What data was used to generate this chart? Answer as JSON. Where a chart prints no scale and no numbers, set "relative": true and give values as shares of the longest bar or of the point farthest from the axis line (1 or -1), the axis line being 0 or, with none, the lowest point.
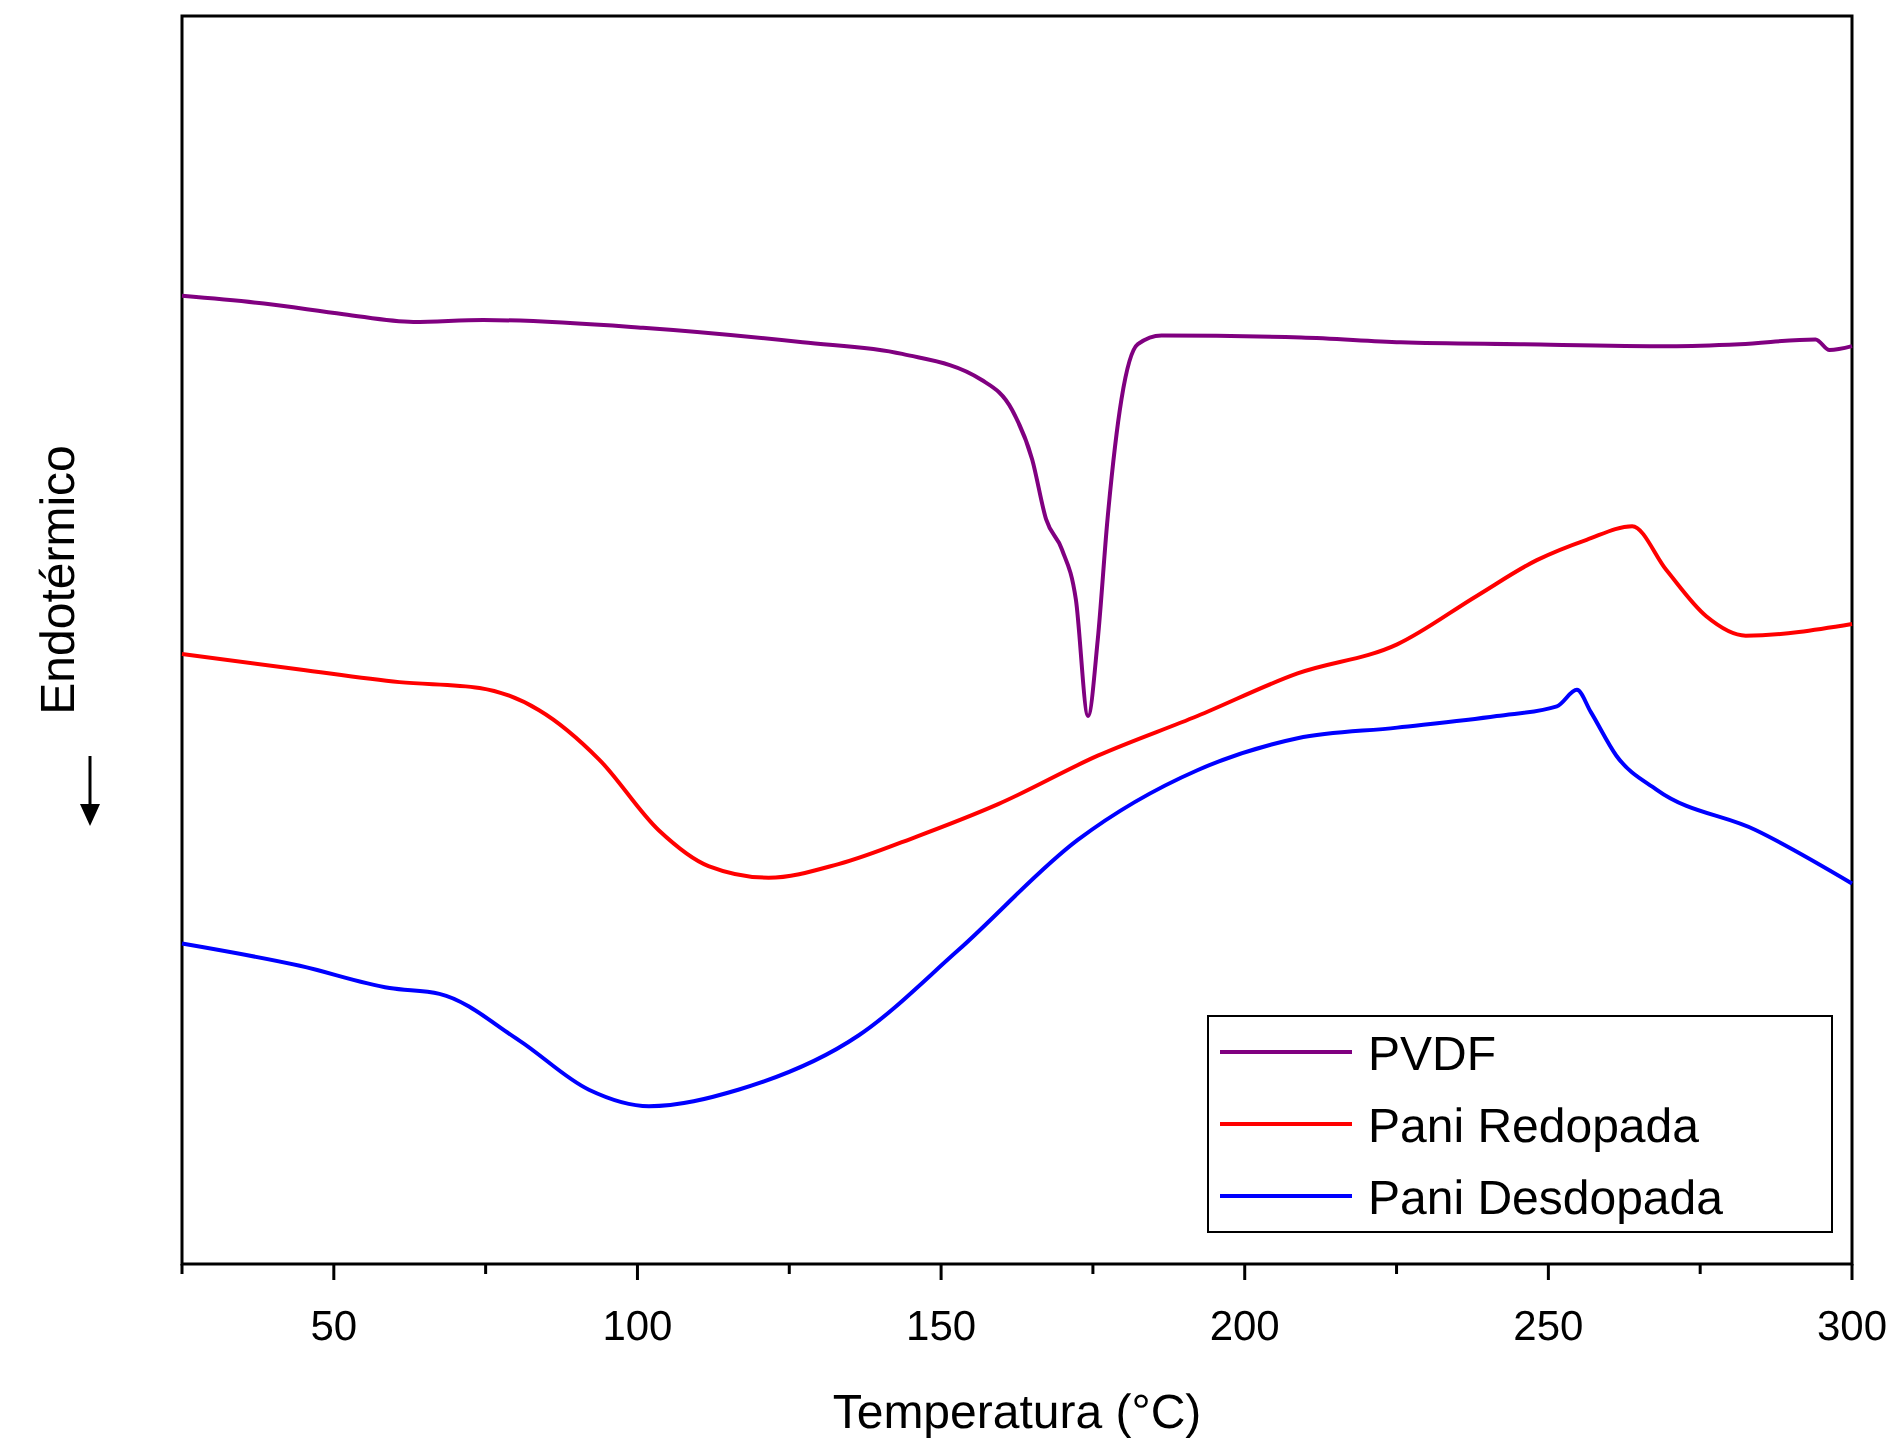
{
  "chart_data": {
    "type": "line",
    "relative": true,
    "xlabel": "Temperatura (°C)",
    "ylabel": "Endotérmico",
    "xlim": [
      25,
      300
    ],
    "xticks": [
      50,
      100,
      150,
      200,
      250,
      300
    ],
    "legend": "bottom right",
    "marker": "none",
    "line_style": "solid",
    "series": [
      {
        "name": "PVDF",
        "color": "#800080",
        "x": [
          25,
          38.5,
          51.6,
          63.1,
          74.6,
          100.9,
          127.2,
          143.6,
          156.7,
          161.7,
          165,
          167.3,
          169.9,
          172.2,
          174.2,
          175.8,
          177.4,
          179.7,
          182.4,
          186.3,
          209.3,
          225.7,
          245.4,
          270,
          281.5,
          294,
          296.3,
          300
        ],
        "values": [
          1.0,
          0.992,
          0.981,
          0.973,
          0.975,
          0.967,
          0.952,
          0.94,
          0.913,
          0.882,
          0.831,
          0.769,
          0.738,
          0.686,
          0.566,
          0.645,
          0.769,
          0.893,
          0.95,
          0.959,
          0.957,
          0.952,
          0.95,
          0.948,
          0.95,
          0.955,
          0.944,
          0.948
        ]
      },
      {
        "name": "Pani Redopada",
        "color": "#ff0000",
        "x": [
          25,
          44.4,
          60.8,
          74,
          83.8,
          93.7,
          103.5,
          111.7,
          121.6,
          133.1,
          146.2,
          159.4,
          175.8,
          192.2,
          208.7,
          225.1,
          238.2,
          248.1,
          256.3,
          263.8,
          269.4,
          276,
          282.5,
          300
        ],
        "values": [
          0.63,
          0.614,
          0.601,
          0.595,
          0.572,
          0.521,
          0.448,
          0.411,
          0.399,
          0.413,
          0.442,
          0.475,
          0.525,
          0.566,
          0.61,
          0.64,
          0.69,
          0.727,
          0.748,
          0.762,
          0.717,
          0.669,
          0.649,
          0.661
        ]
      },
      {
        "name": "Pani Desdopada",
        "color": "#0000ff",
        "x": [
          25,
          44.4,
          59.2,
          67.4,
          80.5,
          92,
          101.9,
          116.6,
          136.4,
          152.8,
          172.5,
          192.2,
          208.7,
          225.1,
          241.5,
          251.4,
          254.7,
          257,
          261.2,
          267.8,
          284.2,
          300
        ],
        "values": [
          0.331,
          0.308,
          0.285,
          0.279,
          0.231,
          0.18,
          0.163,
          0.18,
          0.236,
          0.324,
          0.438,
          0.51,
          0.543,
          0.554,
          0.566,
          0.576,
          0.593,
          0.57,
          0.525,
          0.49,
          0.448,
          0.393
        ]
      }
    ]
  }
}
